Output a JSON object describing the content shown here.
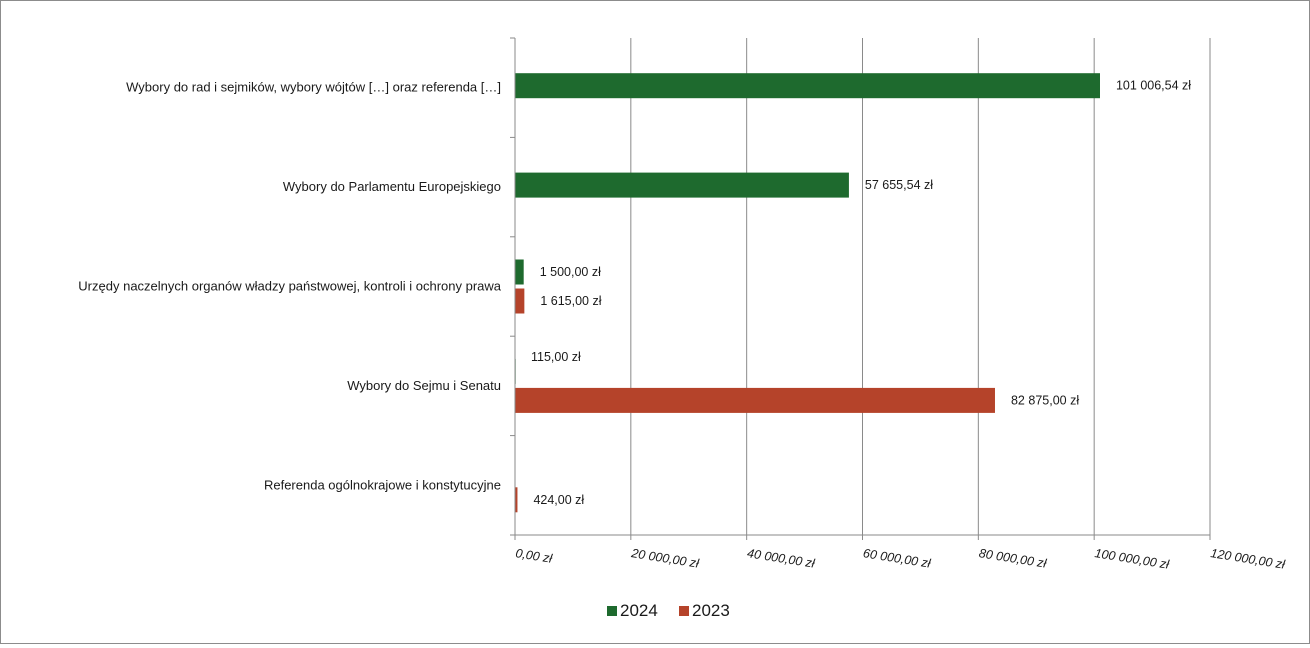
{
  "chart_data": {
    "type": "bar",
    "orientation": "horizontal",
    "categories": [
      "Wybory do rad i sejmików, wybory wójtów […] oraz referenda […]",
      "Wybory do Parlamentu Europejskiego",
      "Urzędy naczelnych organów władzy państwowej, kontroli i ochrony prawa",
      "Wybory do Sejmu i Senatu",
      "Referenda ogólnokrajowe i konstytucyjne"
    ],
    "series": [
      {
        "name": "2024",
        "color": "#1e6a2e",
        "values": [
          101006.54,
          57655.54,
          1500.0,
          115.0,
          null
        ],
        "labels": [
          "101 006,54 zł",
          "57 655,54 zł",
          "1 500,00 zł",
          "115,00 zł",
          ""
        ]
      },
      {
        "name": "2023",
        "color": "#b5432a",
        "values": [
          null,
          null,
          1615.0,
          82875.0,
          424.0
        ],
        "labels": [
          "",
          "",
          "1 615,00 zł",
          "82 875,00 zł",
          "424,00 zł"
        ]
      }
    ],
    "xlim": [
      0,
      120000
    ],
    "x_ticks": [
      0,
      20000,
      40000,
      60000,
      80000,
      100000,
      120000
    ],
    "x_tick_labels": [
      "0,00 zł",
      "20 000,00 zł",
      "40 000,00 zł",
      "60 000,00 zł",
      "80 000,00 zł",
      "100 000,00 zł",
      "120 000,00 zł"
    ],
    "grid": "vertical",
    "legend": "bottom-center",
    "title": "",
    "xlabel": "",
    "ylabel": ""
  }
}
